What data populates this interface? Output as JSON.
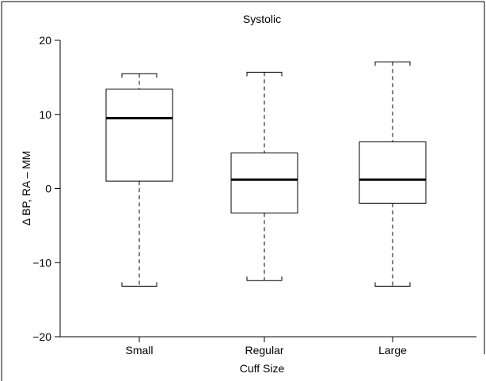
{
  "chart_data": {
    "type": "box",
    "title": "Systolic",
    "xlabel": "Cuff Size",
    "ylabel": "Δ BP, RA – MM",
    "ylim": [
      -20,
      20
    ],
    "yticks": [
      20,
      10,
      0,
      -10,
      -20
    ],
    "ytick_labels": [
      "20",
      "10",
      "0",
      "−10",
      "−20"
    ],
    "grid": false,
    "categories": [
      "Small",
      "Regular",
      "Large"
    ],
    "boxes": [
      {
        "category": "Small",
        "whisker_low": -13.2,
        "q1": 1.0,
        "median": 9.5,
        "q3": 13.4,
        "whisker_high": 15.5
      },
      {
        "category": "Regular",
        "whisker_low": -12.4,
        "q1": -3.3,
        "median": 1.2,
        "q3": 4.8,
        "whisker_high": 15.7
      },
      {
        "category": "Large",
        "whisker_low": -13.2,
        "q1": -2.0,
        "median": 1.2,
        "q3": 6.3,
        "whisker_high": 17.1
      }
    ]
  }
}
